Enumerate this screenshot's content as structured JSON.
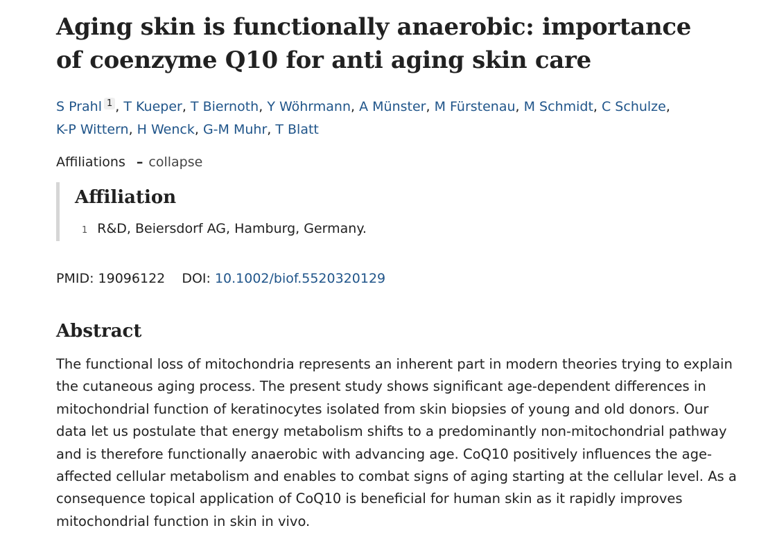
{
  "article": {
    "title": "Aging skin is functionally anaerobic: importance of coenzyme Q10 for anti aging skin care",
    "authors": [
      {
        "name": "S Prahl",
        "sup": "1"
      },
      {
        "name": "T Kueper"
      },
      {
        "name": "T Biernoth"
      },
      {
        "name": "Y Wöhrmann"
      },
      {
        "name": "A Münster"
      },
      {
        "name": "M Fürstenau"
      },
      {
        "name": "M Schmidt"
      },
      {
        "name": "C Schulze"
      },
      {
        "name": "K-P Wittern"
      },
      {
        "name": "H Wenck"
      },
      {
        "name": "G-M Muhr"
      },
      {
        "name": "T Blatt"
      }
    ],
    "affiliations_label": "Affiliations",
    "collapse_label": "collapse",
    "affiliation_heading": "Affiliation",
    "affiliation_items": [
      {
        "num": "1",
        "text": "R&D, Beiersdorf AG, Hamburg, Germany."
      }
    ],
    "pmid_label": "PMID:",
    "pmid": "19096122",
    "doi_label": "DOI:",
    "doi": "10.1002/biof.5520320129",
    "abstract_heading": "Abstract",
    "abstract_text": "The functional loss of mitochondria represents an inherent part in modern theories trying to explain the cutaneous aging process. The present study shows significant age-dependent differences in mitochondrial function of keratinocytes isolated from skin biopsies of young and old donors. Our data let us postulate that energy metabolism shifts to a predominantly non-mitochondrial pathway and is therefore functionally anaerobic with advancing age. CoQ10 positively influences the age-affected cellular metabolism and enables to combat signs of aging starting at the cellular level. As a consequence topical application of CoQ10 is beneficial for human skin as it rapidly improves mitochondrial function in skin in vivo."
  },
  "colors": {
    "link": "#20558a",
    "text": "#212121",
    "affiliation_border": "#d6d6d6"
  }
}
